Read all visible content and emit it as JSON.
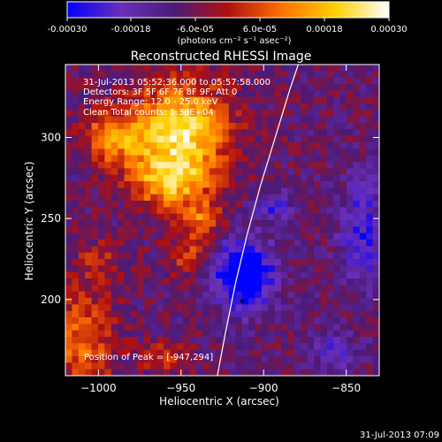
{
  "colorbar": {
    "ticks": [
      "-0.00030",
      "-0.00018",
      "-6.0e-05",
      "6.0e-05",
      "0.00018",
      "0.00030"
    ],
    "units": "(photons cm⁻² s⁻¹ asec⁻²)",
    "colors": [
      "#0000ff",
      "#6a2fb8",
      "#4b1a78",
      "#b01010",
      "#ff7000",
      "#ffd000",
      "#ffffff"
    ]
  },
  "chart_data": {
    "type": "heatmap",
    "title": "Reconstructed RHESSI Image",
    "xlabel": "Heliocentric X (arcsec)",
    "ylabel": "Heliocentric Y (arcsec)",
    "xlim": [
      -1020,
      -830
    ],
    "ylim": [
      153,
      345
    ],
    "xticks": [
      -1000,
      -950,
      -900,
      -850
    ],
    "yticks": [
      200,
      250,
      300
    ],
    "xtick_labels": [
      "−1000",
      "−950",
      "−900",
      "−850"
    ],
    "ytick_labels": [
      "200",
      "250",
      "300"
    ],
    "grid": false,
    "annotations": [
      "31-Jul-2013 05:52:36.000 to 05:57:58.000",
      "Detectors: 3F 5F 6F 7F 8F 9F, Att 0",
      "Energy Range: 12.0 - 25.0 keV",
      "Clean     Total counts: 1.38E+04",
      "Position of Peak = [-947,294]"
    ],
    "peak": {
      "x": -947,
      "y": 294
    },
    "limb_curve": [
      {
        "x": -928,
        "y": 153
      },
      {
        "x": -923,
        "y": 180
      },
      {
        "x": -917,
        "y": 210
      },
      {
        "x": -910,
        "y": 240
      },
      {
        "x": -902,
        "y": 270
      },
      {
        "x": -893,
        "y": 300
      },
      {
        "x": -884,
        "y": 330
      },
      {
        "x": -879,
        "y": 345
      }
    ],
    "min_marker": {
      "x": -913,
      "y": 199
    },
    "cmap": [
      "#0000ff",
      "#6a2fb8",
      "#4b1a78",
      "#b01010",
      "#ff7000",
      "#ffd000",
      "#ffffff"
    ],
    "value_range": [
      -0.0003,
      0.0003
    ],
    "blobs": [
      {
        "x": -950,
        "y": 302,
        "sx": 20,
        "sy": 22,
        "a": 0.000325
      },
      {
        "x": -990,
        "y": 300,
        "sx": 14,
        "sy": 12,
        "a": 0.00019
      },
      {
        "x": -958,
        "y": 272,
        "sx": 15,
        "sy": 10,
        "a": 0.00021
      },
      {
        "x": -938,
        "y": 248,
        "sx": 9,
        "sy": 9,
        "a": 0.00017
      },
      {
        "x": -945,
        "y": 225,
        "sx": 9,
        "sy": 8,
        "a": 0.00013
      },
      {
        "x": -1010,
        "y": 175,
        "sx": 14,
        "sy": 22,
        "a": 0.00017
      },
      {
        "x": -960,
        "y": 165,
        "sx": 10,
        "sy": 7,
        "a": 0.00012
      },
      {
        "x": -1000,
        "y": 225,
        "sx": 10,
        "sy": 9,
        "a": 8e-05
      },
      {
        "x": -912,
        "y": 215,
        "sx": 13,
        "sy": 15,
        "a": -0.00032
      },
      {
        "x": -895,
        "y": 258,
        "sx": 8,
        "sy": 7,
        "a": -0.00015
      },
      {
        "x": -840,
        "y": 240,
        "sx": 10,
        "sy": 25,
        "a": -0.00016
      },
      {
        "x": -858,
        "y": 168,
        "sx": 10,
        "sy": 9,
        "a": -0.00012
      }
    ]
  },
  "footer": {
    "timestamp": "31-Jul-2013 07:09"
  }
}
